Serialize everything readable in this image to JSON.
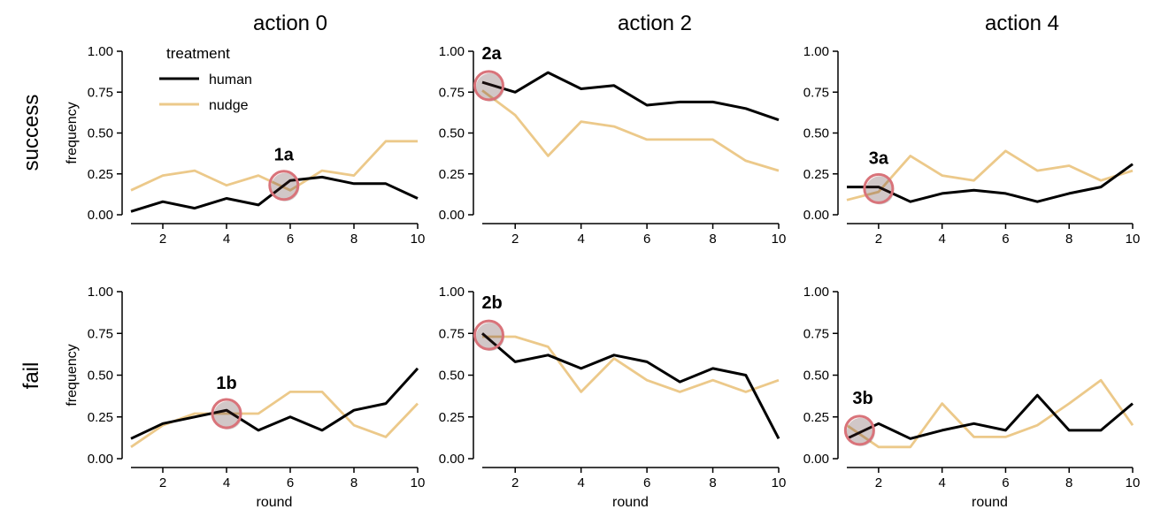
{
  "figure": {
    "col_titles": [
      "action 0",
      "action 2",
      "action 4"
    ],
    "row_titles": [
      "success",
      "fail"
    ],
    "legend": {
      "title": "treatment",
      "entries": [
        {
          "label": "human",
          "color": "#000000"
        },
        {
          "label": "nudge",
          "color": "#ecc98a"
        }
      ]
    },
    "highlight_color": "#d9737a"
  },
  "chart_data": [
    {
      "type": "line",
      "title": "action 0",
      "row": "success",
      "ylabel": "frequency",
      "xlabel": "",
      "x": [
        1,
        2,
        3,
        4,
        5,
        6,
        7,
        8,
        9,
        10
      ],
      "xticks": [
        2,
        4,
        6,
        8,
        10
      ],
      "ylim": [
        0,
        1
      ],
      "yticks": [
        "0.00",
        "0.25",
        "0.50",
        "0.75",
        "1.00"
      ],
      "series": [
        {
          "name": "human",
          "values": [
            0.02,
            0.08,
            0.04,
            0.1,
            0.06,
            0.21,
            0.23,
            0.19,
            0.19,
            0.1
          ]
        },
        {
          "name": "nudge",
          "values": [
            0.15,
            0.24,
            0.27,
            0.18,
            0.24,
            0.15,
            0.27,
            0.24,
            0.45,
            0.45
          ]
        }
      ],
      "annotation": {
        "label": "1a",
        "x": 5.8,
        "y": 0.18
      },
      "legend": true
    },
    {
      "type": "line",
      "title": "action 2",
      "row": "success",
      "ylabel": "",
      "xlabel": "",
      "x": [
        1,
        2,
        3,
        4,
        5,
        6,
        7,
        8,
        9,
        10
      ],
      "xticks": [
        2,
        4,
        6,
        8,
        10
      ],
      "ylim": [
        0,
        1
      ],
      "yticks": [
        "0.00",
        "0.25",
        "0.50",
        "0.75",
        "1.00"
      ],
      "series": [
        {
          "name": "human",
          "values": [
            0.81,
            0.75,
            0.87,
            0.77,
            0.79,
            0.67,
            0.69,
            0.69,
            0.65,
            0.58
          ]
        },
        {
          "name": "nudge",
          "values": [
            0.76,
            0.61,
            0.36,
            0.57,
            0.54,
            0.46,
            0.46,
            0.46,
            0.33,
            0.27
          ]
        }
      ],
      "annotation": {
        "label": "2a",
        "x": 1.2,
        "y": 0.79
      },
      "legend": false
    },
    {
      "type": "line",
      "title": "action 4",
      "row": "success",
      "ylabel": "",
      "xlabel": "",
      "x": [
        1,
        2,
        3,
        4,
        5,
        6,
        7,
        8,
        9,
        10
      ],
      "xticks": [
        2,
        4,
        6,
        8,
        10
      ],
      "ylim": [
        0,
        1
      ],
      "yticks": [
        "0.00",
        "0.25",
        "0.50",
        "0.75",
        "1.00"
      ],
      "series": [
        {
          "name": "human",
          "values": [
            0.17,
            0.17,
            0.08,
            0.13,
            0.15,
            0.13,
            0.08,
            0.13,
            0.17,
            0.31
          ]
        },
        {
          "name": "nudge",
          "values": [
            0.09,
            0.14,
            0.36,
            0.24,
            0.21,
            0.39,
            0.27,
            0.3,
            0.21,
            0.27
          ]
        }
      ],
      "annotation": {
        "label": "3a",
        "x": 2.0,
        "y": 0.16
      },
      "legend": false
    },
    {
      "type": "line",
      "title": "",
      "row": "fail",
      "ylabel": "frequency",
      "xlabel": "round",
      "x": [
        1,
        2,
        3,
        4,
        5,
        6,
        7,
        8,
        9,
        10
      ],
      "xticks": [
        2,
        4,
        6,
        8,
        10
      ],
      "ylim": [
        0,
        1
      ],
      "yticks": [
        "0.00",
        "0.25",
        "0.50",
        "0.75",
        "1.00"
      ],
      "series": [
        {
          "name": "human",
          "values": [
            0.12,
            0.21,
            0.25,
            0.29,
            0.17,
            0.25,
            0.17,
            0.29,
            0.33,
            0.54
          ]
        },
        {
          "name": "nudge",
          "values": [
            0.07,
            0.2,
            0.27,
            0.27,
            0.27,
            0.4,
            0.4,
            0.2,
            0.13,
            0.33
          ]
        }
      ],
      "annotation": {
        "label": "1b",
        "x": 4.0,
        "y": 0.27
      },
      "legend": false
    },
    {
      "type": "line",
      "title": "",
      "row": "fail",
      "ylabel": "",
      "xlabel": "round",
      "x": [
        1,
        2,
        3,
        4,
        5,
        6,
        7,
        8,
        9,
        10
      ],
      "xticks": [
        2,
        4,
        6,
        8,
        10
      ],
      "ylim": [
        0,
        1
      ],
      "yticks": [
        "0.00",
        "0.25",
        "0.50",
        "0.75",
        "1.00"
      ],
      "series": [
        {
          "name": "human",
          "values": [
            0.75,
            0.58,
            0.62,
            0.54,
            0.62,
            0.58,
            0.46,
            0.54,
            0.5,
            0.12
          ]
        },
        {
          "name": "nudge",
          "values": [
            0.73,
            0.73,
            0.67,
            0.4,
            0.6,
            0.47,
            0.4,
            0.47,
            0.4,
            0.47
          ]
        }
      ],
      "annotation": {
        "label": "2b",
        "x": 1.2,
        "y": 0.74
      },
      "legend": false
    },
    {
      "type": "line",
      "title": "",
      "row": "fail",
      "ylabel": "",
      "xlabel": "round",
      "x": [
        1,
        2,
        3,
        4,
        5,
        6,
        7,
        8,
        9,
        10
      ],
      "xticks": [
        2,
        4,
        6,
        8,
        10
      ],
      "ylim": [
        0,
        1
      ],
      "yticks": [
        "0.00",
        "0.25",
        "0.50",
        "0.75",
        "1.00"
      ],
      "series": [
        {
          "name": "human",
          "values": [
            0.12,
            0.21,
            0.12,
            0.17,
            0.21,
            0.17,
            0.38,
            0.17,
            0.17,
            0.33
          ]
        },
        {
          "name": "nudge",
          "values": [
            0.2,
            0.07,
            0.07,
            0.33,
            0.13,
            0.13,
            0.2,
            0.33,
            0.47,
            0.2
          ]
        }
      ],
      "annotation": {
        "label": "3b",
        "x": 1.4,
        "y": 0.17
      },
      "legend": false
    }
  ]
}
